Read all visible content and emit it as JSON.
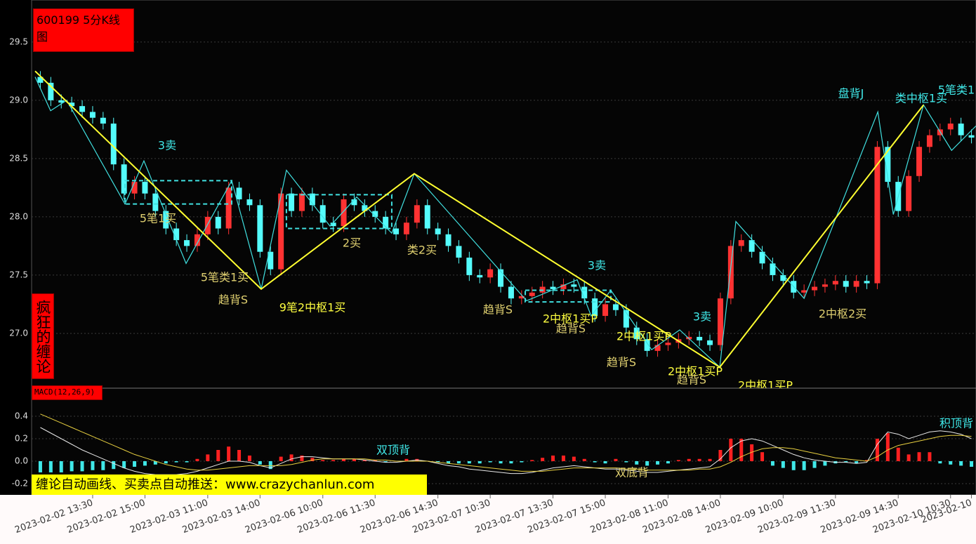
{
  "banner": "缠论自动画线、买卖点自动推送：www.crazychanlun.com",
  "chart_data": [
    {
      "type": "candlestick",
      "title": "600199 5分K线图",
      "side_label": "疯狂的缠论",
      "categories": [
        null,
        null,
        null,
        null,
        null,
        "2023-02-02 13:30",
        null,
        null,
        null,
        null,
        "2023-02-02 15:00",
        null,
        null,
        null,
        null,
        null,
        "2023-02-03 11:00",
        null,
        null,
        null,
        null,
        "2023-02-03 14:00",
        null,
        null,
        null,
        null,
        null,
        "2023-02-06 10:00",
        null,
        null,
        null,
        null,
        "2023-02-06 11:30",
        null,
        null,
        null,
        null,
        null,
        "2023-02-06 14:30",
        null,
        null,
        null,
        null,
        "2023-02-07 10:30",
        null,
        null,
        null,
        null,
        null,
        "2023-02-07 13:30",
        null,
        null,
        null,
        null,
        "2023-02-07 15:00",
        null,
        null,
        null,
        null,
        null,
        "2023-02-08 11:00",
        null,
        null,
        null,
        null,
        "2023-02-08 14:00",
        null,
        null,
        null,
        null,
        null,
        "2023-02-09 10:00",
        null,
        null,
        null,
        null,
        "2023-02-09 11:30",
        null,
        null,
        null,
        null,
        null,
        "2023-02-09 14:30",
        null,
        null,
        null,
        null,
        "2023-02-10 10:30",
        null,
        "2023-02-10"
      ],
      "open": [
        29.2,
        29.15,
        29.0,
        28.98,
        28.95,
        28.9,
        28.85,
        28.8,
        28.45,
        28.2,
        28.3,
        28.2,
        28.05,
        27.9,
        27.8,
        27.75,
        27.85,
        28.0,
        27.9,
        28.25,
        28.15,
        28.1,
        27.7,
        27.55,
        28.2,
        28.05,
        28.2,
        28.1,
        27.95,
        27.92,
        28.15,
        28.1,
        28.05,
        28.0,
        27.9,
        27.85,
        27.95,
        28.1,
        27.9,
        27.85,
        27.75,
        27.65,
        27.5,
        27.48,
        27.55,
        27.4,
        27.3,
        27.32,
        27.35,
        27.4,
        27.38,
        27.42,
        27.4,
        27.3,
        27.15,
        27.25,
        27.2,
        27.05,
        26.95,
        26.85,
        26.9,
        26.92,
        26.95,
        26.97,
        26.94,
        26.9,
        27.3,
        27.75,
        27.8,
        27.7,
        27.6,
        27.5,
        27.45,
        27.35,
        27.37,
        27.4,
        27.42,
        27.45,
        27.4,
        27.45,
        27.43,
        28.6,
        28.3,
        28.05,
        28.35,
        28.6,
        28.7,
        28.75,
        28.8,
        28.7
      ],
      "high": [
        29.25,
        29.2,
        29.05,
        29.03,
        29.0,
        28.95,
        28.9,
        28.85,
        28.5,
        28.35,
        28.35,
        28.25,
        28.1,
        27.95,
        27.85,
        27.9,
        28.05,
        28.05,
        28.3,
        28.3,
        28.2,
        28.15,
        27.75,
        28.25,
        28.25,
        28.25,
        28.25,
        28.15,
        28.0,
        28.2,
        28.2,
        28.15,
        28.1,
        28.05,
        27.95,
        28.0,
        28.15,
        28.15,
        27.95,
        27.9,
        27.8,
        27.7,
        27.55,
        27.6,
        27.6,
        27.45,
        27.37,
        27.4,
        27.45,
        27.45,
        27.47,
        27.47,
        27.45,
        27.35,
        27.3,
        27.3,
        27.25,
        27.1,
        27.0,
        26.95,
        26.97,
        27.0,
        27.02,
        27.02,
        26.99,
        27.35,
        27.8,
        27.85,
        27.85,
        27.75,
        27.65,
        27.55,
        27.5,
        27.42,
        27.45,
        27.47,
        27.5,
        27.5,
        27.5,
        27.5,
        28.65,
        28.65,
        28.35,
        28.4,
        28.65,
        28.75,
        28.8,
        28.85,
        28.85,
        28.75
      ],
      "low": [
        29.1,
        28.95,
        28.93,
        28.9,
        28.85,
        28.8,
        28.75,
        28.4,
        28.15,
        28.15,
        28.15,
        28.0,
        27.85,
        27.75,
        27.7,
        27.7,
        27.8,
        27.85,
        27.85,
        28.1,
        28.05,
        27.65,
        27.5,
        27.5,
        28.0,
        28.0,
        28.05,
        27.9,
        27.87,
        27.87,
        28.05,
        28.0,
        27.95,
        27.85,
        27.8,
        27.8,
        27.9,
        27.85,
        27.8,
        27.7,
        27.6,
        27.45,
        27.43,
        27.43,
        27.35,
        27.25,
        27.25,
        27.27,
        27.3,
        27.33,
        27.33,
        27.35,
        27.25,
        27.1,
        27.1,
        27.15,
        27.0,
        26.9,
        26.8,
        26.8,
        26.85,
        26.87,
        26.9,
        26.89,
        26.85,
        26.85,
        27.25,
        27.7,
        27.65,
        27.55,
        27.45,
        27.4,
        27.3,
        27.3,
        27.32,
        27.35,
        27.37,
        27.35,
        27.35,
        27.38,
        27.38,
        28.25,
        28.0,
        28.0,
        28.3,
        28.55,
        28.65,
        28.7,
        28.65,
        28.63
      ],
      "close": [
        29.15,
        29.0,
        28.98,
        28.95,
        28.9,
        28.85,
        28.8,
        28.45,
        28.2,
        28.3,
        28.2,
        28.05,
        27.9,
        27.8,
        27.75,
        27.85,
        28.0,
        27.9,
        28.25,
        28.15,
        28.1,
        27.7,
        27.55,
        28.2,
        28.05,
        28.2,
        28.1,
        27.95,
        27.92,
        28.15,
        28.1,
        28.05,
        28.0,
        27.9,
        27.85,
        27.95,
        28.1,
        27.9,
        27.85,
        27.75,
        27.65,
        27.5,
        27.48,
        27.55,
        27.4,
        27.3,
        27.32,
        27.35,
        27.4,
        27.38,
        27.42,
        27.4,
        27.3,
        27.15,
        27.25,
        27.2,
        27.05,
        26.95,
        26.85,
        26.9,
        26.92,
        26.95,
        26.97,
        26.94,
        26.9,
        27.3,
        27.75,
        27.8,
        27.7,
        27.6,
        27.5,
        27.45,
        27.35,
        27.37,
        27.4,
        27.42,
        27.45,
        27.4,
        27.45,
        27.43,
        28.6,
        28.3,
        28.05,
        28.35,
        28.6,
        28.7,
        28.75,
        28.8,
        28.7,
        28.68
      ],
      "up_color": "#ff3232",
      "down_color": "#54fcfc",
      "ylim": [
        26.53,
        29.8
      ],
      "yticks": [
        {
          "value": 27,
          "label": "27.0"
        },
        27.5,
        {
          "value": 28,
          "label": "28.0"
        },
        28.5,
        {
          "value": 29,
          "label": "29.0"
        },
        29.5
      ],
      "grid": true,
      "bi": {
        "color": "#40e0e0",
        "x": [
          -0.5,
          0.98,
          2.52,
          8.09,
          9.9,
          13.93,
          18.29,
          21.11,
          23.52,
          27.69,
          30.24,
          33.59,
          35.74,
          46.48,
          51.31,
          52.65,
          54.53,
          58.43,
          61.11,
          64.94,
          66.48,
          73.0,
          80.05,
          81.53,
          84.42,
          87.1,
          89.43
        ],
        "y": [
          29.2,
          28.91,
          29.0,
          28.11,
          28.48,
          27.6,
          28.31,
          27.38,
          28.4,
          27.92,
          28.17,
          27.86,
          28.37,
          27.28,
          27.46,
          27.15,
          27.37,
          26.86,
          27.03,
          26.71,
          27.96,
          27.3,
          28.9,
          28.02,
          28.96,
          28.57,
          28.78
        ]
      },
      "segment": {
        "color": "#ffff30",
        "x": [
          -0.5,
          21.11,
          35.74,
          64.94,
          84.42
        ],
        "y": [
          29.25,
          27.38,
          28.37,
          26.71,
          28.96
        ]
      },
      "zhongshu": [
        {
          "color": "#40e0e0",
          "x": [
            8.09,
            18.29
          ],
          "y": [
            28.11,
            28.31
          ]
        },
        {
          "color": "#40e0e0",
          "x": [
            23.52,
            33.59
          ],
          "y": [
            27.9,
            28.19
          ]
        },
        {
          "color": "#40e0e0",
          "x": [
            46.35,
            54.53
          ],
          "y": [
            27.27,
            27.37
          ]
        }
      ],
      "annotations": [
        {
          "text": "3卖",
          "color": "#40e8e8"
        },
        {
          "text": "3卖",
          "color": "#40e8e8"
        },
        {
          "text": "3卖",
          "color": "#40e8e8"
        },
        {
          "text": "盘背J",
          "color": "#40e8e8"
        },
        {
          "text": "类中枢1买",
          "color": "#40e8e8"
        },
        {
          "text": "5笔类1",
          "color": "#40e8e8"
        },
        {
          "text": "5笔1买",
          "color": "#e0d070"
        },
        {
          "text": "5笔类1买",
          "color": "#e0d070"
        },
        {
          "text": "趋背S",
          "color": "#e0d070"
        },
        {
          "text": "9笔2中枢1买",
          "color": "#ffff40"
        },
        {
          "text": "2买",
          "color": "#e0d070"
        },
        {
          "text": "类2买",
          "color": "#e0d070"
        },
        {
          "text": "趋背S",
          "color": "#e0d070"
        },
        {
          "text": "2中枢1买P",
          "color": "#ffff40"
        },
        {
          "text": "趋背S",
          "color": "#e0d070"
        },
        {
          "text": "2中枢1买P",
          "color": "#ffff40"
        },
        {
          "text": "趋背S",
          "color": "#e0d070"
        },
        {
          "text": "2中枢1买P",
          "color": "#ffff40"
        },
        {
          "text": "趋背S",
          "color": "#e0d070"
        },
        {
          "text": "2中枢1买P",
          "color": "#ffff40"
        },
        {
          "text": "2中枢2买",
          "color": "#e0d070"
        }
      ]
    },
    {
      "type": "macd",
      "title": "MACD(12,26,9)",
      "histogram": [
        -0.1,
        -0.1,
        -0.1,
        -0.09,
        -0.09,
        -0.08,
        -0.08,
        -0.07,
        -0.06,
        -0.05,
        -0.04,
        -0.03,
        -0.02,
        -0.01,
        -0.01,
        0.02,
        0.06,
        0.1,
        0.13,
        0.1,
        0.05,
        -0.03,
        -0.07,
        0.04,
        0.06,
        0.05,
        0.03,
        0.01,
        0.01,
        0.02,
        0.02,
        0.01,
        0.01,
        -0.01,
        0.0,
        0.02,
        0.02,
        0.0,
        -0.01,
        -0.02,
        -0.02,
        -0.02,
        -0.02,
        -0.01,
        -0.02,
        -0.02,
        -0.01,
        0.01,
        0.03,
        0.05,
        0.05,
        0.04,
        0.02,
        -0.01,
        -0.02,
        0.02,
        -0.01,
        -0.03,
        -0.04,
        -0.03,
        -0.02,
        0.01,
        0.02,
        0.02,
        0.02,
        0.1,
        0.2,
        0.2,
        0.15,
        0.08,
        -0.04,
        -0.06,
        -0.08,
        -0.08,
        -0.06,
        -0.04,
        -0.02,
        -0.01,
        -0.02,
        0.01,
        0.2,
        0.25,
        0.12,
        0.06,
        0.08,
        0.08,
        -0.02,
        -0.03,
        -0.04,
        -0.05
      ],
      "up_color": "#ff2020",
      "down_color": "#40e8e8",
      "lines": [
        {
          "color": "#e8e8e8",
          "values": [
            0.3,
            0.25,
            0.2,
            0.15,
            0.1,
            0.06,
            0.02,
            -0.02,
            -0.06,
            -0.09,
            -0.11,
            -0.12,
            -0.12,
            -0.12,
            -0.11,
            -0.09,
            -0.06,
            -0.03,
            0.0,
            0.0,
            -0.01,
            -0.04,
            -0.06,
            -0.02,
            0.02,
            0.04,
            0.04,
            0.03,
            0.02,
            0.02,
            0.02,
            0.01,
            0.0,
            -0.01,
            -0.01,
            0.0,
            0.01,
            0.0,
            -0.02,
            -0.04,
            -0.05,
            -0.07,
            -0.08,
            -0.09,
            -0.1,
            -0.11,
            -0.11,
            -0.1,
            -0.08,
            -0.06,
            -0.05,
            -0.04,
            -0.05,
            -0.06,
            -0.07,
            -0.07,
            -0.08,
            -0.09,
            -0.1,
            -0.1,
            -0.09,
            -0.08,
            -0.07,
            -0.06,
            -0.05,
            0.02,
            0.12,
            0.18,
            0.2,
            0.18,
            0.14,
            0.1,
            0.06,
            0.03,
            0.01,
            0.0,
            -0.01,
            -0.01,
            -0.02,
            -0.01,
            0.15,
            0.26,
            0.24,
            0.2,
            0.23,
            0.26,
            0.27,
            0.26,
            0.24,
            0.2
          ]
        },
        {
          "color": "#e8d040",
          "values": [
            0.42,
            0.38,
            0.34,
            0.3,
            0.26,
            0.22,
            0.18,
            0.14,
            0.1,
            0.06,
            0.03,
            0.0,
            -0.03,
            -0.05,
            -0.07,
            -0.08,
            -0.08,
            -0.07,
            -0.06,
            -0.05,
            -0.04,
            -0.04,
            -0.04,
            -0.04,
            -0.03,
            -0.01,
            0.01,
            0.02,
            0.02,
            0.02,
            0.02,
            0.02,
            0.01,
            0.01,
            0.0,
            0.0,
            0.0,
            0.0,
            -0.01,
            -0.02,
            -0.03,
            -0.04,
            -0.05,
            -0.06,
            -0.07,
            -0.08,
            -0.09,
            -0.09,
            -0.09,
            -0.08,
            -0.07,
            -0.06,
            -0.06,
            -0.06,
            -0.06,
            -0.06,
            -0.07,
            -0.07,
            -0.08,
            -0.08,
            -0.08,
            -0.08,
            -0.08,
            -0.07,
            -0.07,
            -0.05,
            -0.01,
            0.04,
            0.08,
            0.11,
            0.12,
            0.12,
            0.11,
            0.09,
            0.07,
            0.05,
            0.03,
            0.02,
            0.01,
            0.0,
            0.04,
            0.1,
            0.14,
            0.16,
            0.18,
            0.2,
            0.22,
            0.23,
            0.23,
            0.22
          ]
        }
      ],
      "ylim": [
        -0.3,
        0.65
      ],
      "yticks": [
        -0.2,
        {
          "value": 0,
          "label": "0.0"
        },
        0.2,
        0.4
      ],
      "grid": true,
      "annotations": [
        {
          "text": "双顶背",
          "color": "#40e8e8"
        },
        {
          "text": "积顶背",
          "color": "#40e8e8"
        },
        {
          "text": "双底背",
          "color": "#e0d070"
        }
      ]
    }
  ]
}
